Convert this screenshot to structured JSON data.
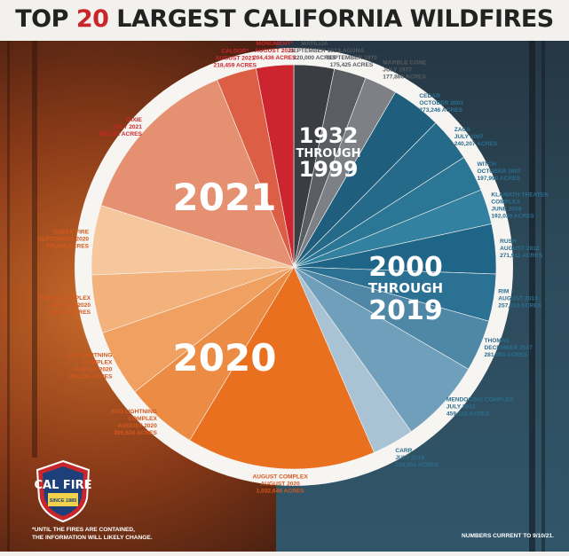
{
  "title": {
    "prefix": "TOP",
    "number": "20",
    "suffix": "LARGEST CALIFORNIA WILDFIRES"
  },
  "groups": [
    {
      "year_lines": [
        "2021"
      ],
      "range_text": ""
    },
    {
      "year_lines": [
        "2020"
      ],
      "range_text": ""
    },
    {
      "year_lines": [
        "1932",
        "THROUGH",
        "1999"
      ],
      "range_text": ""
    },
    {
      "year_lines": [
        "2000",
        "THROUGH",
        "2019"
      ],
      "range_text": ""
    }
  ],
  "chart_data": {
    "type": "pie",
    "title": "TOP 20 LARGEST CALIFORNIA WILDFIRES",
    "unit": "ACRES",
    "slices": [
      {
        "name": "MATILIJA",
        "date": "SEPTEMBER 1932",
        "acres": 220000,
        "acres_label": "220,000 ACRES",
        "group": "1932 THROUGH 1999",
        "color": "#3a3d42"
      },
      {
        "name": "LAGUNA",
        "date": "SEPTEMBER 1970",
        "acres": 175425,
        "acres_label": "175,425 ACRES",
        "group": "1932 THROUGH 1999",
        "color": "#5a5e63"
      },
      {
        "name": "MARBLE CONE",
        "date": "JULY 1977",
        "acres": 177866,
        "acres_label": "177,866 ACRES",
        "group": "1932 THROUGH 1999",
        "color": "#7d8186"
      },
      {
        "name": "CEDAR",
        "date": "OCTOBER 2003",
        "acres": 273246,
        "acres_label": "273,246 ACRES",
        "group": "2000 THROUGH 2019",
        "color": "#1f5f7d"
      },
      {
        "name": "ZACA",
        "date": "JULY 2007",
        "acres": 240207,
        "acres_label": "240,207 ACRES",
        "group": "2000 THROUGH 2019",
        "color": "#256a89"
      },
      {
        "name": "WITCH",
        "date": "OCTOBER 2007",
        "acres": 197990,
        "acres_label": "197,990 ACRES",
        "group": "2000 THROUGH 2019",
        "color": "#2c7695"
      },
      {
        "name": "KLAMATH THEATEK COMPLEX",
        "date": "JUNE 2008",
        "acres": 192038,
        "acres_label": "192,038 ACRES",
        "group": "2000 THROUGH 2019",
        "color": "#3381a0"
      },
      {
        "name": "RUSH",
        "date": "AUGUST 2012",
        "acres": 271911,
        "acres_label": "271,911 ACRES",
        "group": "2000 THROUGH 2019",
        "color": "#1f6587"
      },
      {
        "name": "RIM",
        "date": "AUGUST 2013",
        "acres": 257314,
        "acres_label": "257,314 ACRES",
        "group": "2000 THROUGH 2019",
        "color": "#2a7193"
      },
      {
        "name": "THOMAS",
        "date": "DECEMBER 2017",
        "acres": 281893,
        "acres_label": "281,893 ACRES",
        "group": "2000 THROUGH 2019",
        "color": "#4f87a6"
      },
      {
        "name": "MENDOCINO COMPLEX",
        "date": "JULY 2018",
        "acres": 459123,
        "acres_label": "459,123 ACRES",
        "group": "2000 THROUGH 2019",
        "color": "#6f9fba"
      },
      {
        "name": "CARR",
        "date": "JULY 2018",
        "acres": 229651,
        "acres_label": "229,651 ACRES",
        "group": "2000 THROUGH 2019",
        "color": "#a9c3d4"
      },
      {
        "name": "AUGUST COMPLEX",
        "date": "AUGUST 2020",
        "acres": 1032648,
        "acres_label": "1,032,648 ACRES",
        "group": "2020",
        "color": "#e8701f"
      },
      {
        "name": "SCU LIGHTNING COMPLEX",
        "date": "AUGUST 2020",
        "acres": 396624,
        "acres_label": "396,624 ACRES",
        "group": "2020",
        "color": "#ec8c44"
      },
      {
        "name": "LNU LIGHTNING COMPLEX",
        "date": "AUGUST 2020",
        "acres": 363220,
        "acres_label": "363,220 ACRES",
        "group": "2020",
        "color": "#f0a060"
      },
      {
        "name": "NORTH COMPLEX",
        "date": "AUGUST 2020",
        "acres": 318935,
        "acres_label": "318,935 ACRES",
        "group": "2020",
        "color": "#f3b27c"
      },
      {
        "name": "CREEK FIRE",
        "date": "SEPTEMBER 2020",
        "acres": 379895,
        "acres_label": "379,895 ACRES",
        "group": "2020",
        "color": "#f6c79c"
      },
      {
        "name": "DIXIE",
        "date": "JULY 2021",
        "acres": 950591,
        "acres_label": "950,591 ACRES",
        "group": "2021",
        "color": "#e69072"
      },
      {
        "name": "CALDOR*",
        "date": "AUGUST 2021",
        "acres": 218459,
        "acres_label": "218,459 ACRES",
        "group": "2021",
        "color": "#dc5e44"
      },
      {
        "name": "MONUMENT*",
        "date": "AUGUST 2021",
        "acres": 204436,
        "acres_label": "204,436 ACRES",
        "group": "2021",
        "color": "#cc2530"
      }
    ]
  },
  "footnote_lines": [
    "*UNTIL THE FIRES ARE CONTAINED,",
    "THE INFORMATION WILL LIKELY CHANGE."
  ],
  "numbers_current": "NUMBERS CURRENT TO 9/10/21.",
  "logo": {
    "text": "CAL FIRE",
    "since": "SINCE 1885"
  }
}
